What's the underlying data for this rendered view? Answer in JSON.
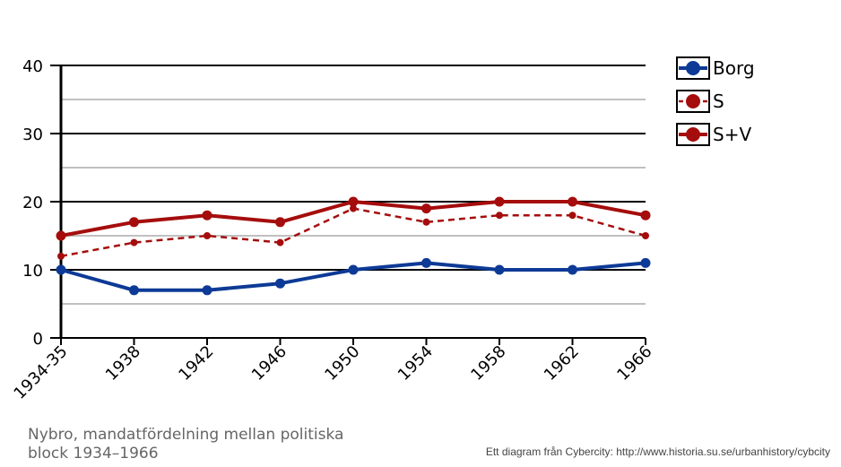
{
  "chart_data": {
    "type": "line",
    "categories": [
      "1934-35",
      "1938",
      "1942",
      "1946",
      "1950",
      "1954",
      "1958",
      "1962",
      "1966"
    ],
    "series": [
      {
        "name": "Borg",
        "values": [
          10,
          7,
          7,
          8,
          10,
          11,
          10,
          10,
          11
        ],
        "color": "#0d3a96",
        "style": "solid"
      },
      {
        "name": "S",
        "values": [
          12,
          14,
          15,
          14,
          19,
          17,
          18,
          18,
          15
        ],
        "color": "#a50d0d",
        "style": "dashed"
      },
      {
        "name": "S+V",
        "values": [
          15,
          17,
          18,
          17,
          20,
          19,
          20,
          20,
          18
        ],
        "color": "#a50d0d",
        "style": "solid"
      }
    ],
    "ylim": [
      0,
      40
    ],
    "yticks": [
      0,
      10,
      20,
      30,
      40
    ],
    "grid": true,
    "legend": "right"
  },
  "caption": {
    "line1": "Nybro, mandatfördelning mellan politiska",
    "line2": "block 1934–1966"
  },
  "credit": "Ett diagram från Cybercity: http://www.historia.su.se/urbanhistory/cybcity"
}
